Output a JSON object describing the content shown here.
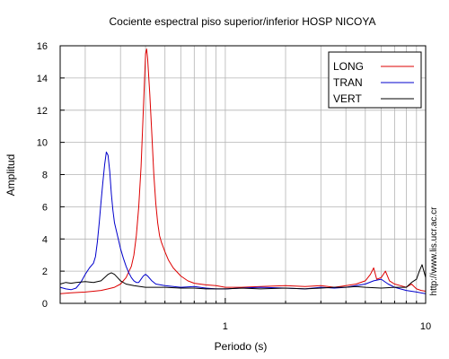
{
  "chart_data": {
    "type": "line",
    "title": "Cociente espectral piso superior/inferior  HOSP NICOYA",
    "xlabel": "Periodo (s)",
    "ylabel": "Amplitud",
    "x_scale": "log",
    "xlim": [
      0.15,
      10
    ],
    "ylim": [
      0,
      16
    ],
    "x_tick_labels": [
      {
        "value": 1,
        "label": "1"
      },
      {
        "value": 10,
        "label": "10"
      }
    ],
    "y_ticks": [
      0,
      2,
      4,
      6,
      8,
      10,
      12,
      14,
      16
    ],
    "grid": true,
    "legend_position": "top-right",
    "side_label": "http://www.lis.ucr.ac.cr",
    "series": [
      {
        "name": "LONG",
        "color": "#dd0000",
        "points": [
          [
            0.15,
            0.6
          ],
          [
            0.17,
            0.65
          ],
          [
            0.2,
            0.7
          ],
          [
            0.22,
            0.75
          ],
          [
            0.24,
            0.8
          ],
          [
            0.26,
            0.9
          ],
          [
            0.28,
            1.0
          ],
          [
            0.3,
            1.2
          ],
          [
            0.32,
            1.6
          ],
          [
            0.34,
            2.3
          ],
          [
            0.35,
            3.0
          ],
          [
            0.36,
            4.2
          ],
          [
            0.37,
            6.0
          ],
          [
            0.38,
            8.5
          ],
          [
            0.39,
            12.0
          ],
          [
            0.4,
            15.5
          ],
          [
            0.405,
            15.8
          ],
          [
            0.41,
            15.2
          ],
          [
            0.42,
            13.0
          ],
          [
            0.43,
            10.5
          ],
          [
            0.44,
            8.0
          ],
          [
            0.45,
            6.2
          ],
          [
            0.46,
            5.0
          ],
          [
            0.47,
            4.2
          ],
          [
            0.48,
            3.8
          ],
          [
            0.5,
            3.2
          ],
          [
            0.52,
            2.7
          ],
          [
            0.55,
            2.2
          ],
          [
            0.6,
            1.7
          ],
          [
            0.65,
            1.4
          ],
          [
            0.7,
            1.25
          ],
          [
            0.8,
            1.15
          ],
          [
            0.9,
            1.1
          ],
          [
            1.0,
            1.0
          ],
          [
            1.2,
            1.0
          ],
          [
            1.5,
            1.05
          ],
          [
            2.0,
            1.1
          ],
          [
            2.5,
            1.05
          ],
          [
            3.0,
            1.1
          ],
          [
            3.5,
            1.0
          ],
          [
            4.0,
            1.1
          ],
          [
            4.5,
            1.2
          ],
          [
            5.0,
            1.4
          ],
          [
            5.3,
            1.8
          ],
          [
            5.5,
            2.2
          ],
          [
            5.7,
            1.5
          ],
          [
            6.0,
            1.6
          ],
          [
            6.3,
            2.0
          ],
          [
            6.6,
            1.4
          ],
          [
            7.0,
            1.2
          ],
          [
            7.5,
            1.1
          ],
          [
            8.0,
            1.0
          ],
          [
            8.5,
            1.2
          ],
          [
            9.0,
            0.9
          ],
          [
            9.5,
            0.8
          ],
          [
            10.0,
            0.75
          ]
        ]
      },
      {
        "name": "TRAN",
        "color": "#0000cc",
        "points": [
          [
            0.15,
            1.0
          ],
          [
            0.16,
            0.9
          ],
          [
            0.17,
            0.85
          ],
          [
            0.18,
            0.95
          ],
          [
            0.19,
            1.3
          ],
          [
            0.2,
            1.8
          ],
          [
            0.21,
            2.2
          ],
          [
            0.22,
            2.5
          ],
          [
            0.225,
            2.9
          ],
          [
            0.23,
            3.8
          ],
          [
            0.235,
            5.0
          ],
          [
            0.24,
            6.3
          ],
          [
            0.245,
            7.5
          ],
          [
            0.25,
            8.6
          ],
          [
            0.255,
            9.4
          ],
          [
            0.26,
            9.2
          ],
          [
            0.265,
            8.2
          ],
          [
            0.27,
            6.8
          ],
          [
            0.275,
            5.8
          ],
          [
            0.28,
            5.0
          ],
          [
            0.29,
            4.2
          ],
          [
            0.3,
            3.4
          ],
          [
            0.31,
            2.8
          ],
          [
            0.32,
            2.3
          ],
          [
            0.33,
            1.9
          ],
          [
            0.34,
            1.6
          ],
          [
            0.35,
            1.4
          ],
          [
            0.36,
            1.3
          ],
          [
            0.37,
            1.3
          ],
          [
            0.38,
            1.5
          ],
          [
            0.39,
            1.7
          ],
          [
            0.4,
            1.8
          ],
          [
            0.41,
            1.7
          ],
          [
            0.43,
            1.4
          ],
          [
            0.45,
            1.2
          ],
          [
            0.5,
            1.1
          ],
          [
            0.6,
            1.0
          ],
          [
            0.7,
            1.05
          ],
          [
            0.8,
            0.95
          ],
          [
            0.9,
            0.9
          ],
          [
            1.0,
            0.9
          ],
          [
            1.2,
            0.95
          ],
          [
            1.5,
            1.0
          ],
          [
            2.0,
            0.95
          ],
          [
            2.5,
            0.9
          ],
          [
            3.0,
            1.0
          ],
          [
            3.5,
            0.95
          ],
          [
            4.0,
            1.0
          ],
          [
            4.5,
            1.1
          ],
          [
            5.0,
            1.2
          ],
          [
            5.5,
            1.4
          ],
          [
            6.0,
            1.5
          ],
          [
            6.5,
            1.2
          ],
          [
            7.0,
            1.0
          ],
          [
            8.0,
            0.8
          ],
          [
            9.0,
            0.7
          ],
          [
            10.0,
            0.6
          ]
        ]
      },
      {
        "name": "VERT",
        "color": "#000000",
        "points": [
          [
            0.15,
            1.2
          ],
          [
            0.16,
            1.3
          ],
          [
            0.17,
            1.25
          ],
          [
            0.18,
            1.3
          ],
          [
            0.2,
            1.35
          ],
          [
            0.22,
            1.3
          ],
          [
            0.24,
            1.4
          ],
          [
            0.25,
            1.6
          ],
          [
            0.26,
            1.8
          ],
          [
            0.27,
            1.9
          ],
          [
            0.28,
            1.8
          ],
          [
            0.29,
            1.6
          ],
          [
            0.3,
            1.4
          ],
          [
            0.32,
            1.2
          ],
          [
            0.35,
            1.1
          ],
          [
            0.4,
            1.0
          ],
          [
            0.5,
            1.0
          ],
          [
            0.6,
            0.95
          ],
          [
            0.7,
            0.95
          ],
          [
            0.8,
            0.9
          ],
          [
            0.9,
            0.9
          ],
          [
            1.0,
            0.9
          ],
          [
            1.2,
            0.95
          ],
          [
            1.5,
            0.9
          ],
          [
            2.0,
            0.95
          ],
          [
            2.5,
            0.9
          ],
          [
            3.0,
            0.95
          ],
          [
            3.5,
            1.0
          ],
          [
            4.0,
            1.0
          ],
          [
            4.5,
            1.05
          ],
          [
            5.0,
            1.0
          ],
          [
            6.0,
            0.95
          ],
          [
            7.0,
            1.0
          ],
          [
            8.0,
            1.0
          ],
          [
            8.5,
            1.3
          ],
          [
            9.0,
            1.5
          ],
          [
            9.3,
            2.0
          ],
          [
            9.6,
            2.4
          ],
          [
            10.0,
            1.6
          ]
        ]
      }
    ]
  }
}
